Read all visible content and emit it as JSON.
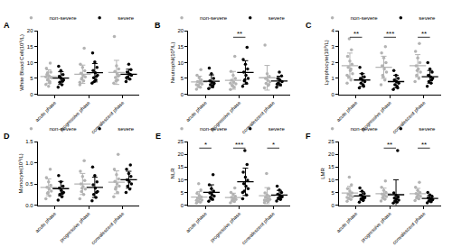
{
  "chart_data": [
    {
      "type": "scatter",
      "title": "A",
      "y_label": "White Blood Cell(10⁹/L)",
      "legend": "top right",
      "grid": false,
      "categories": [
        "acute phase",
        "progressive phase",
        "convalescent phase"
      ],
      "ylim": [
        0,
        20
      ],
      "yticks": [
        0,
        5,
        10,
        15,
        20
      ],
      "series": [
        {
          "name": "non-severe",
          "color": "#b3b3b3",
          "values": [
            [
              3.1,
              4.0,
              4.5,
              5.2,
              5.8,
              6.3,
              7.0,
              2.5,
              8.2,
              9.8,
              4.8,
              5.5,
              3.6,
              6.8
            ],
            [
              3.0,
              4.2,
              4.8,
              5.5,
              6.0,
              6.6,
              7.4,
              8.5,
              9.5,
              14.5,
              5.1,
              3.8
            ],
            [
              3.5,
              4.5,
              5.3,
              6.0,
              6.5,
              7.2,
              8.0,
              9.0,
              18.2,
              5.7,
              4.2
            ]
          ],
          "mean": [
            5.6,
            6.3,
            6.9
          ],
          "sd": [
            2.1,
            2.9,
            3.8
          ]
        },
        {
          "name": "severe",
          "color": "#000000",
          "values": [
            [
              2.2,
              3.0,
              3.8,
              4.5,
              5.0,
              5.6,
              6.2,
              7.5,
              8.8,
              4.1,
              5.3
            ],
            [
              3.5,
              4.5,
              5.2,
              6.0,
              6.8,
              7.5,
              8.5,
              10.2,
              13.0,
              5.6,
              4.0
            ],
            [
              4.0,
              4.8,
              5.5,
              6.0,
              6.4,
              7.0,
              7.8,
              9.5,
              5.2,
              6.2
            ]
          ],
          "mean": [
            5.1,
            6.8,
            6.3
          ],
          "sd": [
            2.0,
            2.9,
            1.6
          ]
        }
      ],
      "annotations": []
    },
    {
      "type": "scatter",
      "title": "B",
      "y_label": "Neutrophil(10⁹/L)",
      "legend": "top right",
      "grid": false,
      "categories": [
        "acute phase",
        "progressive phase",
        "convalescent phase"
      ],
      "ylim": [
        0,
        20
      ],
      "yticks": [
        0,
        5,
        10,
        15,
        20
      ],
      "series": [
        {
          "name": "non-severe",
          "color": "#b3b3b3",
          "values": [
            [
              1.6,
              2.2,
              2.8,
              3.2,
              3.6,
              4.0,
              4.5,
              5.2,
              6.0,
              7.8,
              2.5,
              3.0,
              3.9
            ],
            [
              1.5,
              2.2,
              2.8,
              3.3,
              3.8,
              4.4,
              5.0,
              6.0,
              7.2,
              12.0,
              2.6,
              3.5
            ],
            [
              2.0,
              2.8,
              3.4,
              3.9,
              4.4,
              5.0,
              5.6,
              6.5,
              15.5,
              3.1
            ]
          ],
          "mean": [
            3.9,
            4.4,
            5.2
          ],
          "sd": [
            1.8,
            2.8,
            3.9
          ]
        },
        {
          "name": "severe",
          "color": "#000000",
          "values": [
            [
              1.8,
              2.4,
              3.0,
              3.4,
              3.8,
              4.2,
              5.0,
              6.5,
              8.3,
              2.8
            ],
            [
              2.5,
              3.5,
              4.2,
              5.0,
              6.0,
              7.0,
              8.0,
              9.5,
              11.0,
              14.8,
              4.6
            ],
            [
              2.2,
              3.0,
              3.5,
              4.0,
              4.5,
              5.0,
              5.8,
              7.0,
              3.2
            ]
          ],
          "mean": [
            4.1,
            6.9,
            4.2
          ],
          "sd": [
            2.0,
            3.7,
            1.5
          ]
        }
      ],
      "annotations": [
        {
          "category": "progressive phase",
          "text": "**"
        }
      ]
    },
    {
      "type": "scatter",
      "title": "C",
      "y_label": "Lymphocyte(10⁹/L)",
      "legend": "top right",
      "grid": false,
      "categories": [
        "acute phase",
        "progressive phase",
        "convalescent phase"
      ],
      "ylim": [
        0,
        4
      ],
      "yticks": [
        0,
        1,
        2,
        3,
        4
      ],
      "series": [
        {
          "name": "non-severe",
          "color": "#b3b3b3",
          "values": [
            [
              0.7,
              0.9,
              1.1,
              1.3,
              1.5,
              1.7,
              1.9,
              2.1,
              2.4,
              2.8,
              3.5,
              1.2,
              1.6
            ],
            [
              0.6,
              0.9,
              1.2,
              1.4,
              1.6,
              1.8,
              2.0,
              2.3,
              2.6,
              3.0,
              1.1
            ],
            [
              0.8,
              1.0,
              1.2,
              1.4,
              1.6,
              1.8,
              2.0,
              2.3,
              2.7,
              3.2,
              1.5
            ]
          ],
          "mean": [
            1.8,
            1.7,
            1.8
          ],
          "sd": [
            0.8,
            0.7,
            0.7
          ]
        },
        {
          "name": "severe",
          "color": "#000000",
          "values": [
            [
              0.4,
              0.6,
              0.7,
              0.8,
              0.9,
              1.0,
              1.1,
              1.3,
              1.7,
              0.5
            ],
            [
              0.3,
              0.5,
              0.6,
              0.7,
              0.8,
              0.9,
              1.0,
              1.2,
              1.5,
              0.4
            ],
            [
              0.5,
              0.7,
              0.8,
              1.0,
              1.1,
              1.2,
              1.4,
              1.6,
              2.0,
              0.9
            ]
          ],
          "mean": [
            0.9,
            0.8,
            1.1
          ],
          "sd": [
            0.4,
            0.4,
            0.4
          ]
        }
      ],
      "annotations": [
        {
          "category": "acute phase",
          "text": "**"
        },
        {
          "category": "progressive phase",
          "text": "***"
        },
        {
          "category": "convalescent phase",
          "text": "**"
        }
      ]
    },
    {
      "type": "scatter",
      "title": "D",
      "y_label": "Monocyte(10⁹/L)",
      "legend": "top right",
      "grid": false,
      "categories": [
        "acute phase",
        "progressive phase",
        "convalescent phase"
      ],
      "ylim": [
        0,
        1.5
      ],
      "yticks": [
        {
          "value": 0,
          "label": "0.0"
        },
        0.5,
        {
          "value": 1,
          "label": "1.0"
        },
        1.5
      ],
      "series": [
        {
          "name": "non-severe",
          "color": "#b3b3b3",
          "values": [
            [
              0.15,
              0.22,
              0.28,
              0.33,
              0.38,
              0.42,
              0.47,
              0.55,
              0.65,
              0.85,
              0.3
            ],
            [
              0.15,
              0.25,
              0.32,
              0.38,
              0.44,
              0.5,
              0.58,
              0.68,
              0.8,
              1.05,
              0.4
            ],
            [
              0.2,
              0.3,
              0.38,
              0.45,
              0.5,
              0.56,
              0.62,
              0.72,
              0.85,
              1.2,
              0.42
            ]
          ],
          "mean": [
            0.42,
            0.5,
            0.54
          ],
          "sd": [
            0.2,
            0.25,
            0.27
          ]
        },
        {
          "name": "severe",
          "color": "#000000",
          "values": [
            [
              0.12,
              0.2,
              0.25,
              0.3,
              0.35,
              0.4,
              0.45,
              0.55,
              0.7,
              0.28
            ],
            [
              0.1,
              0.18,
              0.25,
              0.32,
              0.4,
              0.48,
              0.55,
              0.7,
              0.9,
              0.3
            ],
            [
              0.3,
              0.38,
              0.45,
              0.5,
              0.55,
              0.6,
              0.68,
              0.75,
              0.85,
              0.95
            ]
          ],
          "mean": [
            0.39,
            0.42,
            0.6
          ],
          "sd": [
            0.17,
            0.24,
            0.2
          ]
        }
      ],
      "annotations": []
    },
    {
      "type": "scatter",
      "title": "E",
      "y_label": "NLR",
      "legend": "top right",
      "grid": false,
      "categories": [
        "acute phase",
        "progressive phase",
        "convalescent phase"
      ],
      "ylim": [
        0,
        25
      ],
      "yticks": [
        0,
        5,
        10,
        15,
        20,
        25
      ],
      "series": [
        {
          "name": "non-severe",
          "color": "#b3b3b3",
          "values": [
            [
              0.8,
              1.2,
              1.6,
              2.0,
              2.4,
              2.8,
              3.2,
              3.8,
              4.6,
              6.0,
              8.5,
              1.9
            ],
            [
              0.9,
              1.4,
              1.8,
              2.2,
              2.6,
              3.0,
              3.5,
              4.2,
              5.0,
              6.8,
              2.0
            ],
            [
              1.0,
              1.4,
              1.8,
              2.2,
              2.6,
              3.0,
              3.4,
              4.0,
              4.8,
              6.5,
              12.5,
              2.0
            ]
          ],
          "mean": [
            3.2,
            3.0,
            3.7
          ],
          "sd": [
            2.1,
            1.7,
            3.2
          ]
        },
        {
          "name": "severe",
          "color": "#000000",
          "values": [
            [
              1.5,
              2.3,
              3.0,
              3.6,
              4.2,
              4.8,
              5.5,
              6.5,
              8.0,
              12.0,
              2.8
            ],
            [
              2.5,
              4.0,
              5.5,
              6.5,
              7.5,
              8.5,
              9.8,
              11.0,
              13.0,
              16.0,
              21.5,
              5.0
            ],
            [
              1.6,
              2.2,
              2.8,
              3.3,
              3.8,
              4.3,
              5.0,
              6.0,
              7.5,
              3.0
            ]
          ],
          "mean": [
            5.0,
            9.2,
            4.0
          ],
          "sd": [
            3.0,
            5.4,
            1.8
          ]
        }
      ],
      "annotations": [
        {
          "category": "acute phase",
          "text": "*"
        },
        {
          "category": "progressive phase",
          "text": "***"
        },
        {
          "category": "convalescent phase",
          "text": "*"
        }
      ]
    },
    {
      "type": "scatter",
      "title": "F",
      "y_label": "LMR",
      "legend": "top right",
      "grid": false,
      "categories": [
        "acute phase",
        "progressive phase",
        "convalescent phase"
      ],
      "ylim": [
        0,
        25
      ],
      "yticks": [
        0,
        5,
        10,
        15,
        20,
        25
      ],
      "series": [
        {
          "name": "non-severe",
          "color": "#b3b3b3",
          "values": [
            [
              1.5,
              2.2,
              2.8,
              3.3,
              3.8,
              4.3,
              4.8,
              5.5,
              6.5,
              8.0,
              11.0,
              3.0
            ],
            [
              1.6,
              2.3,
              2.9,
              3.4,
              3.9,
              4.4,
              5.0,
              5.8,
              7.0,
              9.5,
              3.2
            ],
            [
              1.8,
              2.5,
              3.0,
              3.5,
              4.0,
              4.5,
              5.0,
              5.8,
              7.0,
              9.0,
              3.3
            ]
          ],
          "mean": [
            4.8,
            4.5,
            4.5
          ],
          "sd": [
            2.6,
            2.2,
            2.1
          ]
        },
        {
          "name": "severe",
          "color": "#000000",
          "values": [
            [
              1.2,
              1.8,
              2.4,
              2.9,
              3.4,
              3.9,
              4.5,
              5.5,
              6.8,
              2.6
            ],
            [
              0.8,
              1.2,
              1.6,
              2.0,
              2.4,
              2.8,
              3.2,
              3.8,
              4.8,
              21.5,
              1.5
            ],
            [
              0.9,
              1.3,
              1.7,
              2.1,
              2.5,
              2.9,
              3.4,
              4.0,
              5.0,
              2.3
            ]
          ],
          "mean": [
            3.6,
            4.1,
            2.6
          ],
          "sd": [
            1.7,
            5.9,
            1.3
          ]
        }
      ],
      "annotations": [
        {
          "category": "progressive phase",
          "text": "**"
        },
        {
          "category": "convalescent phase",
          "text": "**"
        }
      ]
    }
  ]
}
